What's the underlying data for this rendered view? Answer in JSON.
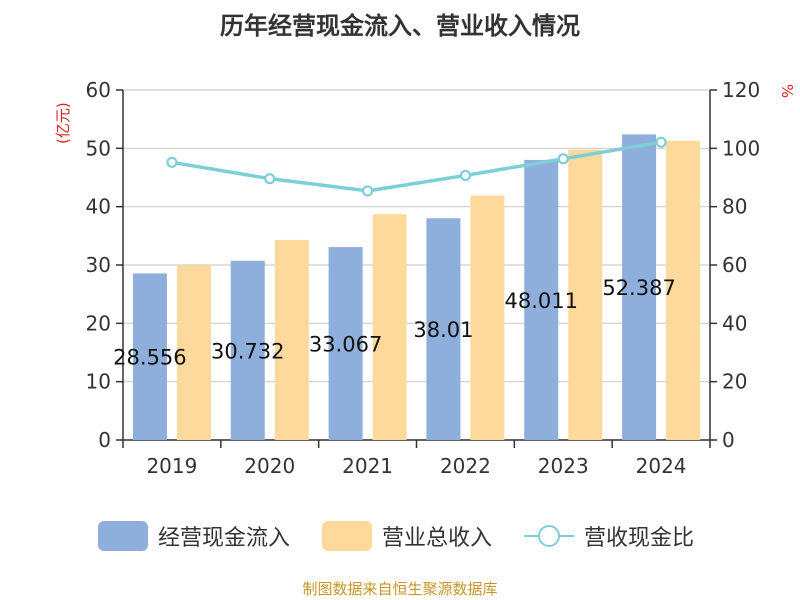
{
  "chart_data": {
    "type": "bar",
    "title": "历年经营现金流入、营业收入情况",
    "categories": [
      "2019",
      "2020",
      "2021",
      "2022",
      "2023",
      "2024"
    ],
    "series": [
      {
        "name": "经营现金流入",
        "type": "bar",
        "axis": "left",
        "color": "#8eaedb",
        "values": [
          28.556,
          30.732,
          33.067,
          38.01,
          48.011,
          52.387
        ],
        "labels": [
          "28.556",
          "30.732",
          "33.067",
          "38.01",
          "48.011",
          "52.387"
        ]
      },
      {
        "name": "营业总收入",
        "type": "bar",
        "axis": "left",
        "color": "#fdd99b",
        "values": [
          30.0,
          34.3,
          38.7,
          41.9,
          49.8,
          51.3
        ]
      },
      {
        "name": "营收现金比",
        "type": "line",
        "axis": "right",
        "color": "#7dcfd6",
        "values": [
          95.2,
          89.6,
          85.4,
          90.7,
          96.4,
          102.1
        ]
      }
    ],
    "y_left": {
      "label": "(亿元)",
      "ylim": [
        0,
        60
      ],
      "ticks": [
        "0",
        "10",
        "20",
        "30",
        "40",
        "50",
        "60"
      ]
    },
    "y_right": {
      "label": "%",
      "ylim": [
        0,
        120
      ],
      "ticks": [
        "0",
        "20",
        "40",
        "60",
        "80",
        "100",
        "120"
      ]
    },
    "grid": true,
    "legend_position": "bottom"
  },
  "source": "制图数据来自恒生聚源数据库"
}
